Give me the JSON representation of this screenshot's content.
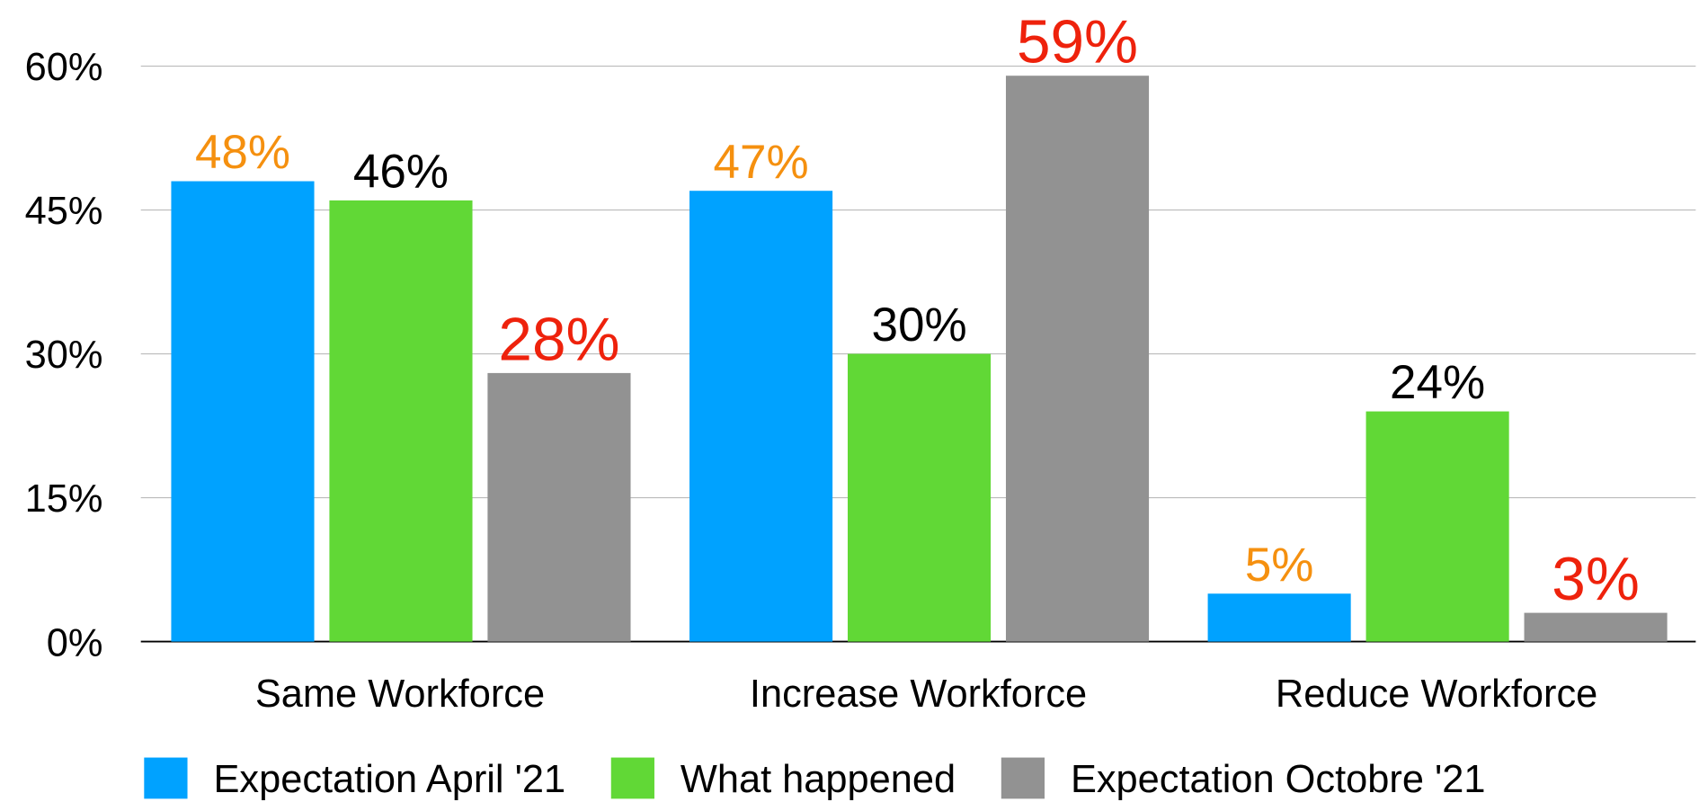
{
  "chart_data": {
    "type": "bar",
    "categories": [
      "Same Workforce",
      "Increase Workforce",
      "Reduce Workforce"
    ],
    "series": [
      {
        "name": "Expectation April '21",
        "color": "#00a2ff",
        "label_color": "#f5900f",
        "values": [
          48,
          47,
          5
        ],
        "value_labels": [
          "48%",
          "47%",
          "5%"
        ]
      },
      {
        "name": "What happened",
        "color": "#61d836",
        "label_color": "#000000",
        "values": [
          46,
          30,
          24
        ],
        "value_labels": [
          "46%",
          "30%",
          "24%"
        ]
      },
      {
        "name": "Expectation Octobre '21",
        "color": "#929292",
        "label_color": "#ee220c",
        "values": [
          28,
          59,
          3
        ],
        "value_labels": [
          "28%",
          "59%",
          "3%"
        ]
      }
    ],
    "ylim": [
      0,
      60
    ],
    "yticks": [
      {
        "value": 0,
        "label": "0%"
      },
      {
        "value": 15,
        "label": "15%"
      },
      {
        "value": 30,
        "label": "30%"
      },
      {
        "value": 45,
        "label": "45%"
      },
      {
        "value": 60,
        "label": "60%"
      }
    ],
    "grid": true,
    "legend": "bottom"
  }
}
